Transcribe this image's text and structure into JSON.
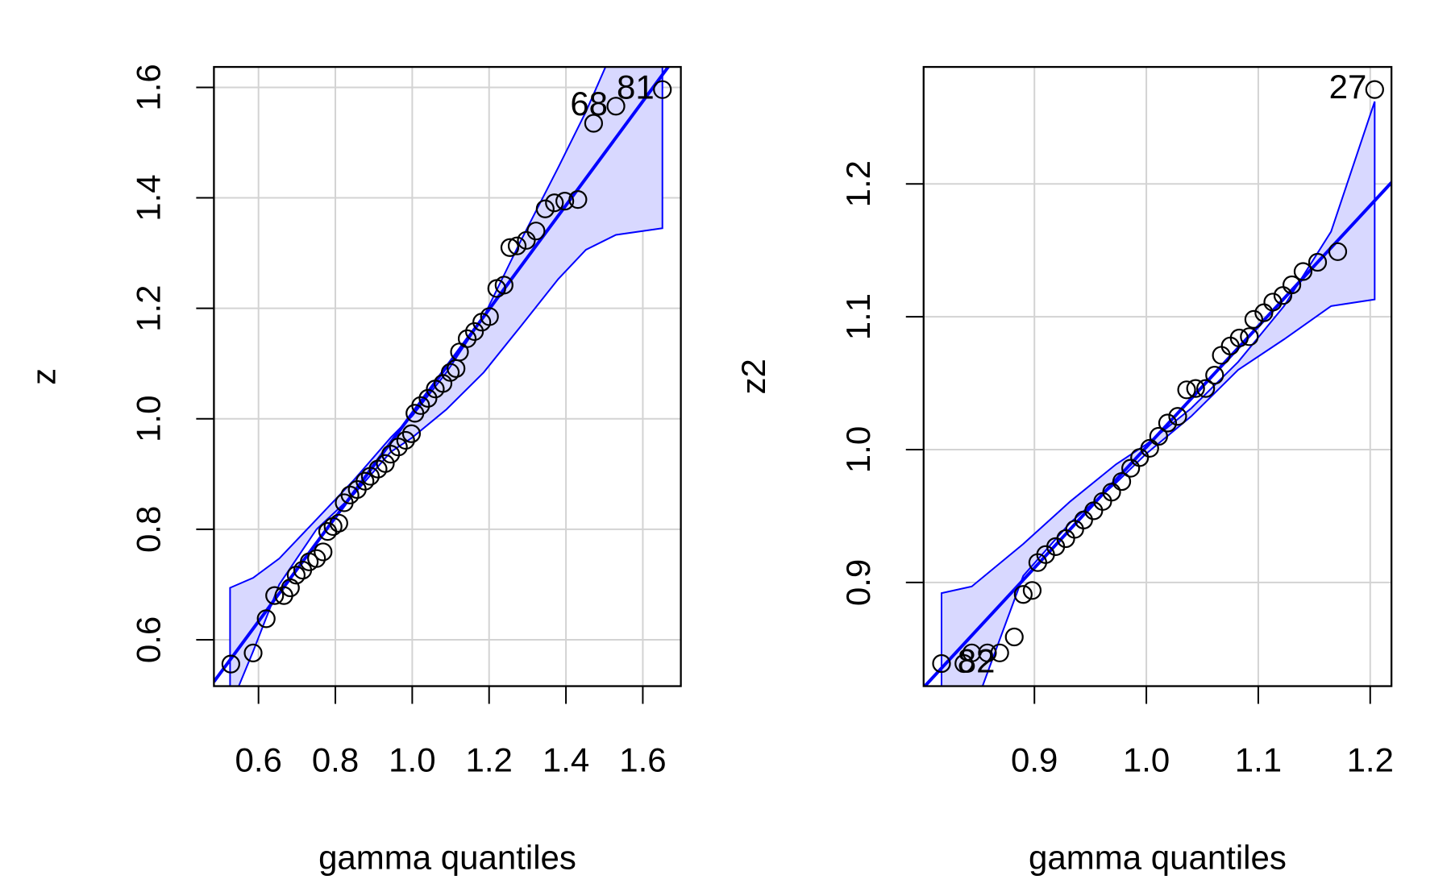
{
  "chart_data": [
    {
      "type": "scatter",
      "xlabel": "gamma quantiles",
      "ylabel": "z",
      "x": [
        0.528,
        0.586,
        0.62,
        0.642,
        0.666,
        0.683,
        0.698,
        0.715,
        0.732,
        0.751,
        0.768,
        0.78,
        0.794,
        0.809,
        0.823,
        0.838,
        0.857,
        0.877,
        0.891,
        0.911,
        0.93,
        0.944,
        0.964,
        0.983,
        0.998,
        1.007,
        1.022,
        1.041,
        1.06,
        1.08,
        1.099,
        1.114,
        1.123,
        1.143,
        1.162,
        1.181,
        1.201,
        1.22,
        1.239,
        1.254,
        1.273,
        1.297,
        1.322,
        1.346,
        1.37,
        1.397,
        1.431,
        1.472,
        1.53,
        1.651
      ],
      "y": [
        0.556,
        0.576,
        0.638,
        0.68,
        0.68,
        0.694,
        0.717,
        0.726,
        0.741,
        0.747,
        0.759,
        0.796,
        0.805,
        0.811,
        0.848,
        0.862,
        0.872,
        0.887,
        0.896,
        0.909,
        0.919,
        0.936,
        0.949,
        0.961,
        0.973,
        1.01,
        1.024,
        1.037,
        1.054,
        1.064,
        1.084,
        1.091,
        1.121,
        1.145,
        1.158,
        1.175,
        1.185,
        1.236,
        1.242,
        1.31,
        1.313,
        1.323,
        1.34,
        1.38,
        1.391,
        1.394,
        1.397,
        1.535,
        1.566,
        1.596
      ],
      "point_labels": [
        null,
        null,
        null,
        null,
        null,
        null,
        null,
        null,
        null,
        null,
        null,
        null,
        null,
        null,
        null,
        null,
        null,
        null,
        null,
        null,
        null,
        null,
        null,
        null,
        null,
        null,
        null,
        null,
        null,
        null,
        null,
        null,
        null,
        null,
        null,
        null,
        null,
        null,
        null,
        null,
        null,
        null,
        null,
        null,
        null,
        null,
        null,
        null,
        "68",
        "81"
      ],
      "reference_line": {
        "x": [
          0.484,
          1.699
        ],
        "y": [
          0.524,
          1.668
        ]
      },
      "band": {
        "x": [
          0.526,
          0.586,
          0.654,
          0.751,
          0.848,
          0.944,
          1.0,
          1.089,
          1.186,
          1.283,
          1.38,
          1.452,
          1.53,
          1.651
        ],
        "upper": [
          0.694,
          0.712,
          0.747,
          0.818,
          0.889,
          0.966,
          1.005,
          1.084,
          1.185,
          1.323,
          1.455,
          1.556,
          1.68,
          1.9
        ],
        "lower": [
          0.478,
          0.579,
          0.7,
          0.8,
          0.863,
          0.94,
          0.966,
          1.017,
          1.084,
          1.168,
          1.253,
          1.306,
          1.333,
          1.345
        ]
      },
      "xlim": [
        0.484,
        1.699
      ],
      "ylim": [
        0.516,
        1.637
      ],
      "xticks": [
        0.6,
        0.8,
        {
          "value": 1,
          "label": "1.0"
        },
        1.2,
        1.4,
        1.6
      ],
      "yticks": [
        0.6,
        0.8,
        {
          "value": 1,
          "label": "1.0"
        },
        1.2,
        1.4,
        1.6
      ],
      "grid": true,
      "point_color": "#000000",
      "line_color": "#0000ff",
      "band_color": "#d8d8ff"
    },
    {
      "type": "scatter",
      "xlabel": "gamma quantiles",
      "ylabel": "z2",
      "x": [
        0.817,
        0.837,
        0.844,
        0.858,
        0.869,
        0.882,
        0.89,
        0.898,
        0.903,
        0.91,
        0.919,
        0.928,
        0.936,
        0.944,
        0.953,
        0.961,
        0.969,
        0.978,
        0.986,
        0.994,
        1.003,
        1.011,
        1.019,
        1.028,
        1.036,
        1.044,
        1.053,
        1.061,
        1.067,
        1.075,
        1.083,
        1.092,
        1.096,
        1.105,
        1.113,
        1.122,
        1.13,
        1.14,
        1.153,
        1.171,
        1.204
      ],
      "y": [
        0.839,
        0.839,
        0.847,
        0.847,
        0.847,
        0.859,
        0.891,
        0.894,
        0.915,
        0.921,
        0.927,
        0.933,
        0.94,
        0.947,
        0.954,
        0.961,
        0.968,
        0.976,
        0.986,
        0.994,
        1.001,
        1.01,
        1.02,
        1.025,
        1.045,
        1.046,
        1.046,
        1.056,
        1.071,
        1.078,
        1.084,
        1.085,
        1.098,
        1.103,
        1.111,
        1.116,
        1.124,
        1.134,
        1.141,
        1.149,
        1.271
      ],
      "point_labels": [
        null,
        "82",
        null,
        null,
        null,
        null,
        null,
        null,
        null,
        null,
        null,
        null,
        null,
        null,
        null,
        null,
        null,
        null,
        null,
        null,
        null,
        null,
        null,
        null,
        null,
        null,
        null,
        null,
        null,
        null,
        null,
        null,
        null,
        null,
        null,
        null,
        null,
        null,
        null,
        null,
        "27"
      ],
      "reference_line": {
        "x": [
          0.801,
          1.219
        ],
        "y": [
          0.821,
          1.201
        ]
      },
      "band": {
        "x": [
          0.817,
          0.844,
          0.89,
          0.932,
          0.973,
          1.0,
          1.04,
          1.082,
          1.123,
          1.165,
          1.204
        ],
        "upper": [
          0.892,
          0.897,
          0.929,
          0.961,
          0.989,
          1.004,
          1.031,
          1.066,
          1.108,
          1.164,
          1.262
        ],
        "lower": [
          0.76,
          0.8,
          0.905,
          0.945,
          0.975,
          0.997,
          1.025,
          1.06,
          1.083,
          1.108,
          1.113
        ]
      },
      "xlim": [
        0.801,
        1.219
      ],
      "ylim": [
        0.822,
        1.288
      ],
      "xticks": [
        0.9,
        {
          "value": 1,
          "label": "1.0"
        },
        1.1,
        1.2
      ],
      "yticks": [
        0.9,
        {
          "value": 1,
          "label": "1.0"
        },
        1.1,
        1.2
      ],
      "grid": true,
      "point_color": "#000000",
      "line_color": "#0000ff",
      "band_color": "#d8d8ff"
    }
  ]
}
